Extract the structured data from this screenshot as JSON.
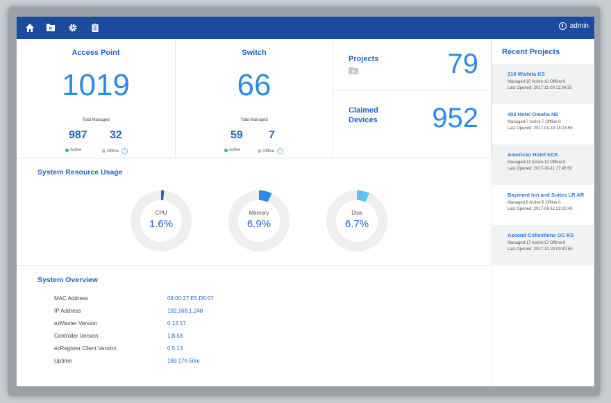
{
  "header": {
    "icons": [
      "home-icon",
      "projects-icon",
      "settings-icon",
      "clipboard-icon"
    ],
    "user": "admin"
  },
  "access_point": {
    "title": "Access Point",
    "total": "1019",
    "total_label": "Total Managed",
    "active": "987",
    "active_label": "Active",
    "offline": "32",
    "offline_label": "Offline"
  },
  "switch": {
    "title": "Switch",
    "total": "66",
    "total_label": "Total Managed",
    "active": "59",
    "active_label": "Active",
    "offline": "7",
    "offline_label": "Offline"
  },
  "projects": {
    "title": "Projects",
    "count": "79"
  },
  "claimed": {
    "title_line1": "Claimed",
    "title_line2": "Devices",
    "count": "952"
  },
  "resources": {
    "title": "System Resource Usage",
    "items": [
      {
        "label": "CPU",
        "value": "1.6%",
        "fraction": 0.016,
        "color": "#1e63c6"
      },
      {
        "label": "Memory",
        "value": "6.9%",
        "fraction": 0.069,
        "color": "#2a8ae6"
      },
      {
        "label": "Disk",
        "value": "6.7%",
        "fraction": 0.067,
        "color": "#5cc0f2"
      }
    ]
  },
  "overview": {
    "title": "System Overview",
    "rows": [
      {
        "label": "MAC Address",
        "value": "08:00:27:E5:D5:07"
      },
      {
        "label": "IP Address",
        "value": "192.168.1.248"
      },
      {
        "label": "ezMaster Version",
        "value": "0.12.17"
      },
      {
        "label": "Controller Version",
        "value": "1.8.58"
      },
      {
        "label": "ezRegister Client Version",
        "value": "0.5.13"
      },
      {
        "label": "Uptime",
        "value": "18d 17h 50m"
      }
    ]
  },
  "recent_projects": {
    "title": "Recent Projects",
    "items": [
      {
        "name": "316 Wichita KS",
        "stats": "Managed:10  Active:10  Offline:0",
        "opened": "Last Opened: 2017-11-09 11:34:35"
      },
      {
        "name": "402 Hotel Omaha NE",
        "stats": "Managed:7  Active:7  Offline:0",
        "opened": "Last Opened: 2017-04-19 18:23:59"
      },
      {
        "name": "American Hotel KCK",
        "stats": "Managed:13  Active:13  Offline:0",
        "opened": "Last Opened: 2017-10-11 17:45:50"
      },
      {
        "name": "Baymont Inn and Suites LR AR",
        "stats": "Managed:6  Active:6  Offline:0",
        "opened": "Last Opened: 2017-08-12 22:29:43"
      },
      {
        "name": "Ascend Collections GC KS",
        "stats": "Managed:17  Active:17  Offline:0",
        "opened": "Last Opened: 2017-10-23 09:40:50"
      }
    ]
  }
}
